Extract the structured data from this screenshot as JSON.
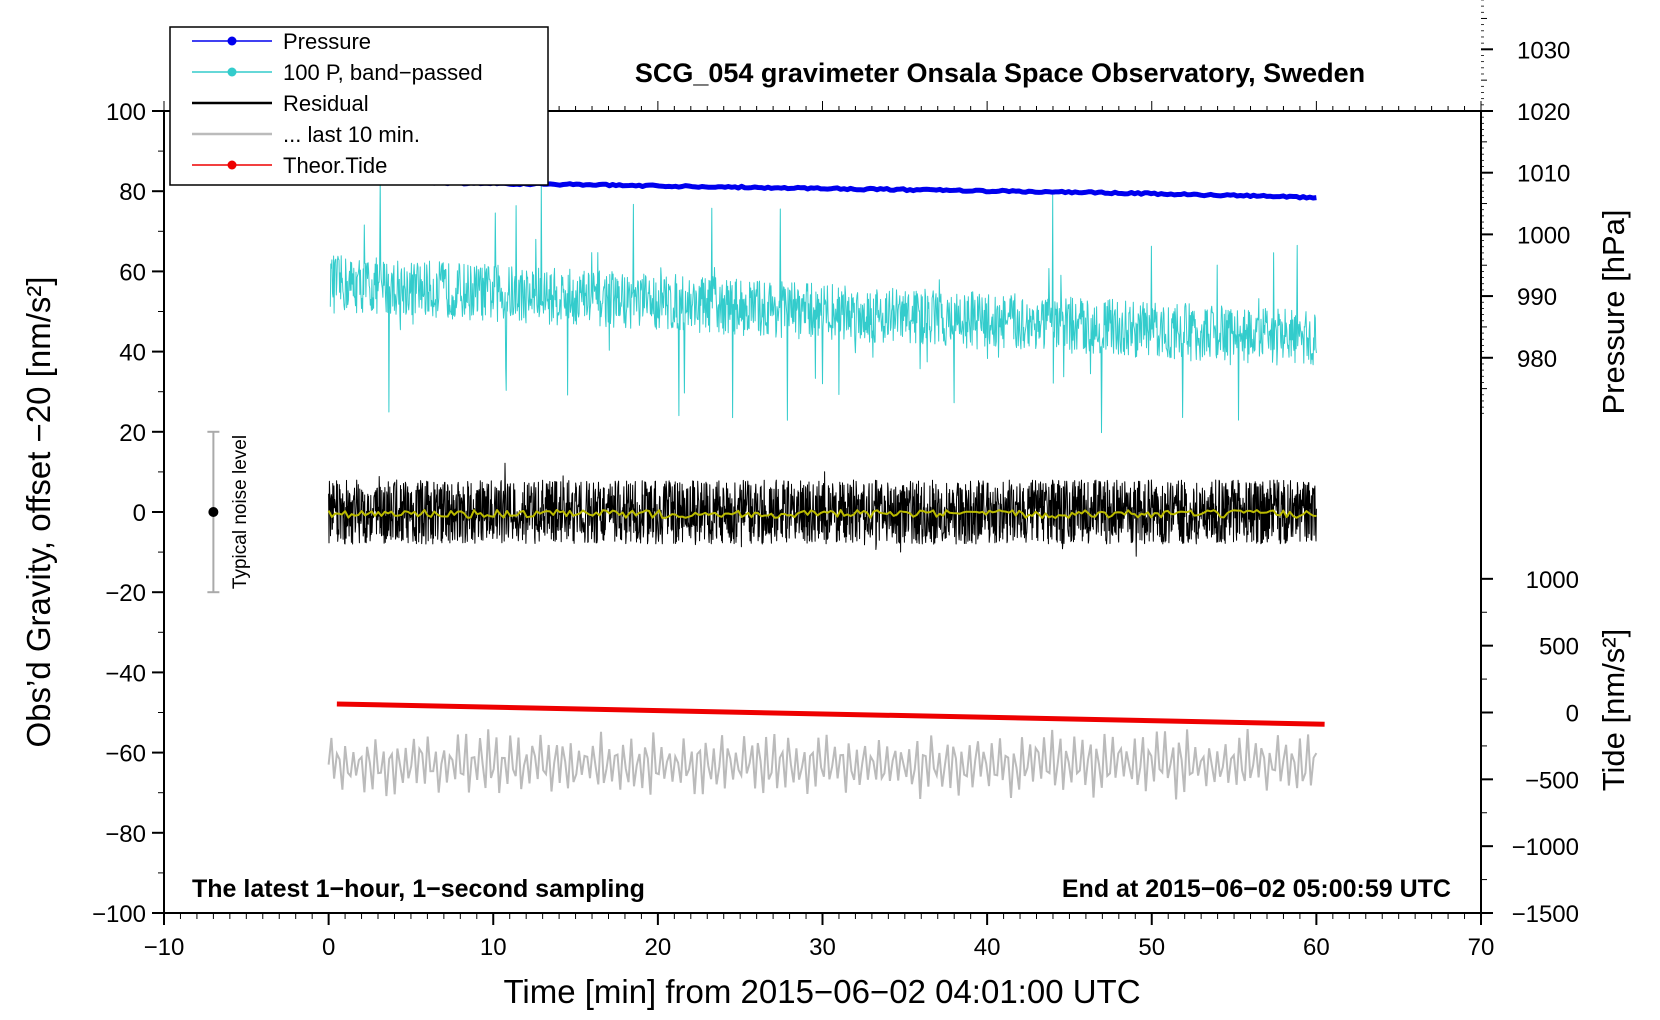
{
  "chart_data": {
    "type": "line",
    "title": "SCG_054 gravimeter Onsala Space Observatory, Sweden",
    "xlabel": "Time [min] from 2015−06−02 04:01:00 UTC",
    "ylabel_left": "Obs’d Gravity, offset −20 [nm/s²]",
    "ylabel_right_top": "Pressure [hPa]",
    "ylabel_right_bottom": "Tide [nm/s²]",
    "xlim": [
      -10,
      70
    ],
    "ylim": [
      -100,
      100
    ],
    "xticks": [
      -10,
      0,
      10,
      20,
      30,
      40,
      50,
      60,
      70
    ],
    "xtick_labels": [
      "−10",
      "0",
      "10",
      "20",
      "30",
      "40",
      "50",
      "60",
      "70"
    ],
    "yticks": [
      100,
      80,
      60,
      40,
      20,
      0,
      -20,
      -40,
      -60,
      -80,
      -100
    ],
    "ytick_labels": [
      "100",
      "80",
      "60",
      "40",
      "20",
      "0",
      "−20",
      "−40",
      "−60",
      "−80",
      "−100"
    ],
    "pressure_axis": {
      "ticks": [
        1030,
        1020,
        1010,
        1000,
        990,
        980
      ],
      "tick_labels": [
        "1030",
        "1020",
        "1010",
        "1000",
        "990",
        "980"
      ],
      "unit_per_left": 0.65,
      "value_at_left_zero": 955
    },
    "tide_axis": {
      "ticks": [
        1000,
        500,
        0,
        -500,
        -1000,
        -1500
      ],
      "tick_labels": [
        "1000",
        "500",
        "0",
        "−500",
        "−1000",
        "−1500"
      ],
      "unit_per_left": 30,
      "value_at_left_zero": 1500
    },
    "legend": {
      "position": "top-left",
      "entries": [
        {
          "label": "Pressure",
          "color": "#0000ee",
          "marker": true
        },
        {
          "label": "100 P, band−passed",
          "color": "#33cccc",
          "marker": true
        },
        {
          "label": "Residual",
          "color": "#000000",
          "marker": false
        },
        {
          "label": "... last 10 min.",
          "color": "#bbbbbb",
          "marker": false
        },
        {
          "label": "Theor.Tide",
          "color": "#ee0000",
          "marker": true
        }
      ]
    },
    "annotations": {
      "bottom_left": "The latest 1−hour, 1−second sampling",
      "bottom_right": "End at 2015−06−02 05:00:59 UTC",
      "noise_label": "Typical noise level",
      "noise_bar": {
        "x": -7,
        "center": 0,
        "halfwidth": 20
      }
    },
    "series": [
      {
        "name": "Pressure",
        "color": "#0000ee",
        "x_range": [
          0,
          60
        ],
        "values_hpa": [
          1008.6,
          1008.2,
          1007.7,
          1007.2,
          1006.7,
          1006.0
        ]
      },
      {
        "name": "100 P, band-passed",
        "color": "#33cccc",
        "x_range": [
          0.1,
          60
        ],
        "level_start": 57,
        "level_end": 43,
        "amplitude": 13
      },
      {
        "name": "Residual",
        "color": "#000000",
        "x_range": [
          0,
          60
        ],
        "level": 0,
        "amplitude": 8
      },
      {
        "name": "Residual smoothed",
        "color": "#bbbb00",
        "x_range": [
          0,
          60
        ],
        "level": -0.5,
        "amplitude": 1
      },
      {
        "name": "... last 10 min.",
        "color": "#bbbbbb",
        "x_range": [
          0,
          60
        ],
        "level": -63,
        "amplitude": 7
      },
      {
        "name": "Theor.Tide",
        "color": "#ee0000",
        "x": [
          0.5,
          60.5
        ],
        "values_nm_s2": [
          64,
          -88
        ]
      }
    ]
  }
}
